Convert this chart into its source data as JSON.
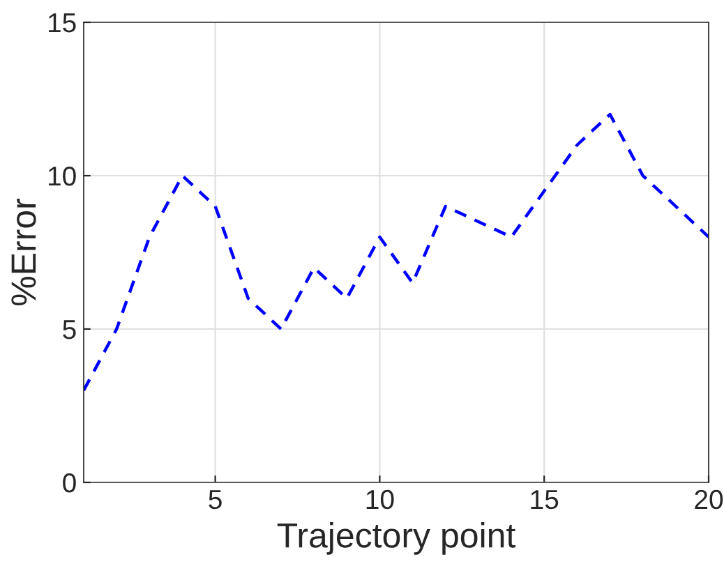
{
  "chart_data": {
    "type": "line",
    "xlabel": "Trajectory point",
    "ylabel": "%Error",
    "x": [
      1,
      2,
      3,
      4,
      5,
      6,
      7,
      8,
      9,
      10,
      11,
      12,
      13,
      14,
      15,
      16,
      17,
      18,
      19,
      20
    ],
    "series": [
      {
        "color": "#0000ff",
        "values": [
          3,
          5,
          8,
          10,
          9,
          6,
          5,
          7,
          6,
          8,
          6.5,
          9,
          8.5,
          8,
          9.5,
          11,
          12,
          10,
          9,
          8
        ]
      }
    ],
    "xlim": [
      1,
      20
    ],
    "xticks": [
      5,
      10,
      15,
      20
    ],
    "ylim": [
      0,
      15
    ],
    "yticks": [
      0,
      5,
      10,
      15
    ],
    "grid": true,
    "line_style": "dashed",
    "marker": "none"
  }
}
